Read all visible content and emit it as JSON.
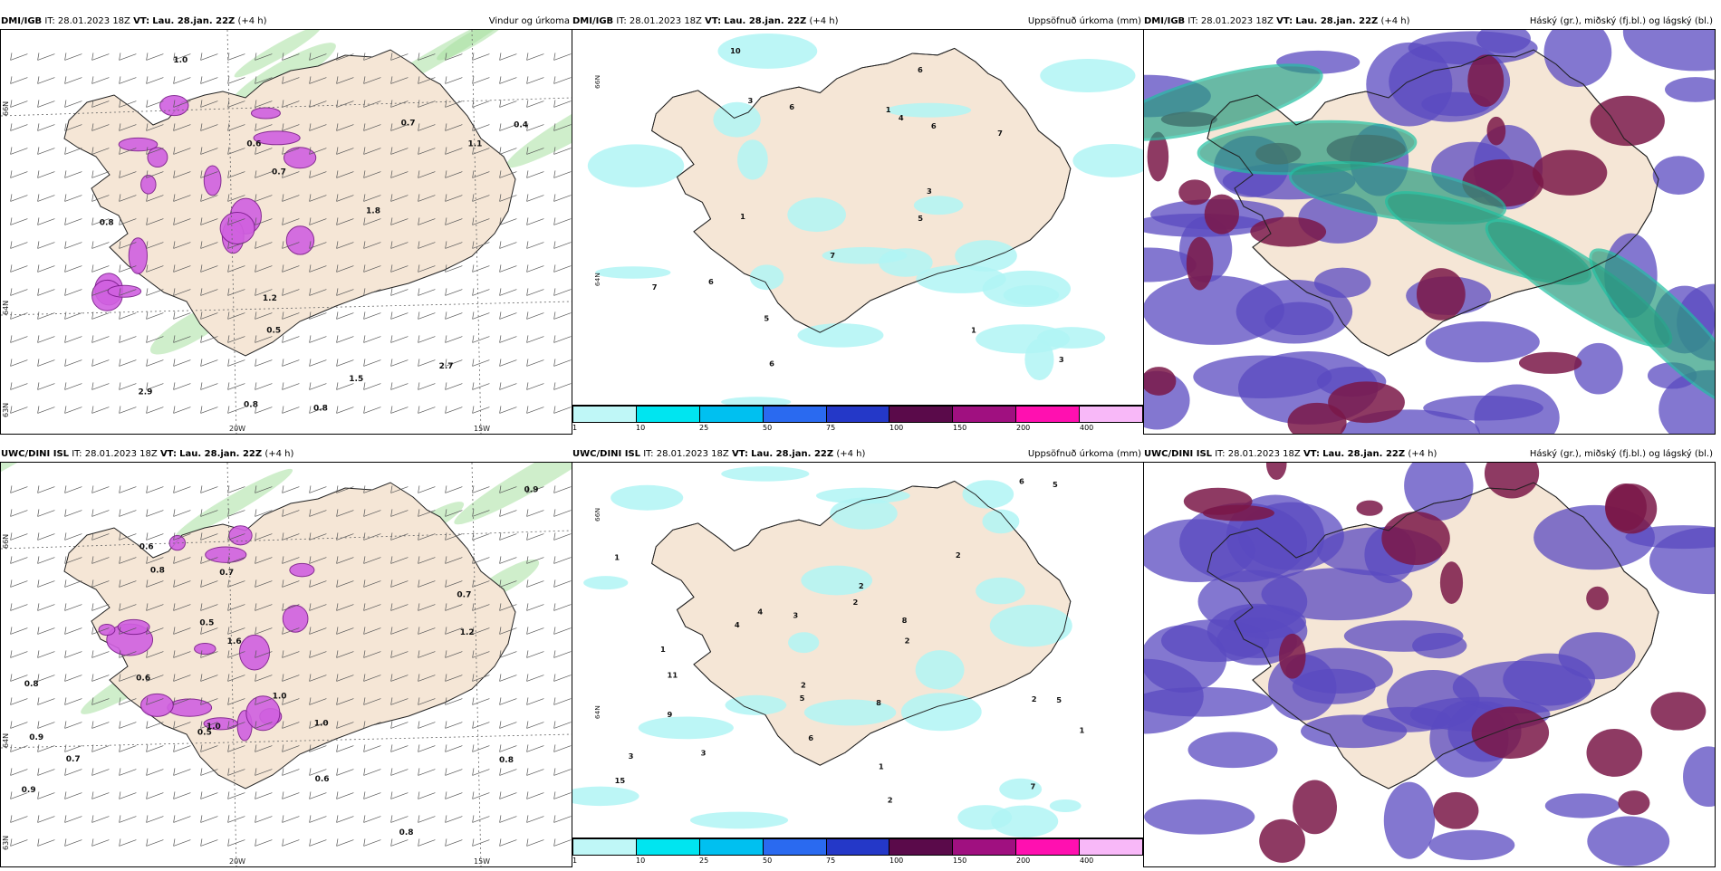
{
  "panels": [
    {
      "source": "DMI/IGB",
      "it": "IT: 28.01.2023 18Z",
      "vt_label": "VT:",
      "vt": "Lau. 28.jan. 22Z",
      "lead": "(+4 h)",
      "title": "Vindur og úrkoma",
      "type": "wind"
    },
    {
      "source": "DMI/IGB",
      "it": "IT: 28.01.2023 18Z",
      "vt_label": "VT:",
      "vt": "Lau. 28.jan. 22Z",
      "lead": "(+4 h)",
      "title": "Uppsöfnuð úrkoma (mm)",
      "type": "precip"
    },
    {
      "source": "DMI/IGB",
      "it": "IT: 28.01.2023 18Z",
      "vt_label": "VT:",
      "vt": "Lau. 28.jan. 22Z",
      "lead": "(+4 h)",
      "title": "Háský (gr.), miðský (fj.bl.) og lágský (bl.)",
      "type": "cloud"
    },
    {
      "source": "UWC/DINI ISL",
      "it": "IT: 28.01.2023 18Z",
      "vt_label": "VT:",
      "vt": "Lau. 28.jan. 22Z",
      "lead": "(+4 h)",
      "title": "",
      "type": "wind"
    },
    {
      "source": "UWC/DINI ISL",
      "it": "IT: 28.01.2023 18Z",
      "vt_label": "VT:",
      "vt": "Lau. 28.jan. 22Z",
      "lead": "(+4 h)",
      "title": "Uppsöfnuð úrkoma (mm)",
      "type": "precip"
    },
    {
      "source": "UWC/DINI ISL",
      "it": "IT: 28.01.2023 18Z",
      "vt_label": "VT:",
      "vt": "Lau. 28.jan. 22Z",
      "lead": "(+4 h)",
      "title": "Háský (gr.), miðský (fj.bl.) og lágský (bl.)",
      "type": "cloud"
    }
  ],
  "axes": {
    "lon": [
      "20W",
      "15W"
    ],
    "lat": [
      "66N",
      "64N",
      "63N"
    ]
  },
  "colorbar": {
    "ticks": [
      "1",
      "10",
      "25",
      "50",
      "75",
      "100",
      "150",
      "200",
      "400"
    ],
    "colors": [
      "#bff7f7",
      "#00e5f0",
      "#00c0f0",
      "#2a6af0",
      "#2438c8",
      "#5a0a4a",
      "#a01080",
      "#ff10b0",
      "#f8b8f8"
    ]
  },
  "colors": {
    "land": "#f5e6d6",
    "precip_magenta": "#d060e0",
    "wind_green": "#a8e0a0",
    "precip_cyan": "#b0f4f4",
    "cloud_high": "#2a9c80",
    "cloud_mid": "#5a4ac0",
    "cloud_low": "#7a1848"
  },
  "wind_values_top": [
    "0.8",
    "1.0",
    "0.7",
    "0.7",
    "0.5",
    "0.4",
    "0.6",
    "1.1",
    "0.8",
    "0.8",
    "2.7",
    "2.9",
    "1.2",
    "1.5",
    "1.8"
  ],
  "wind_values_bottom": [
    "0.9",
    "0.8",
    "1.0",
    "0.7",
    "0.5",
    "0.6",
    "1.0",
    "1.0",
    "0.8",
    "0.6",
    "0.9",
    "0.8",
    "1.6",
    "0.9",
    "0.7",
    "0.5",
    "1.2",
    "0.6",
    "0.7",
    "0.8"
  ],
  "precip_values_top": [
    "7",
    "6",
    "6",
    "6",
    "7",
    "10",
    "1",
    "1",
    "3",
    "3",
    "4",
    "5",
    "7",
    "6",
    "3",
    "5",
    "1",
    "6"
  ],
  "precip_values_bottom": [
    "6",
    "4",
    "5",
    "2",
    "2",
    "1",
    "3",
    "4",
    "5",
    "8",
    "7",
    "2",
    "3",
    "2",
    "1",
    "5",
    "11",
    "15",
    "2",
    "3",
    "1",
    "2",
    "6",
    "9",
    "8",
    "2",
    "1"
  ]
}
